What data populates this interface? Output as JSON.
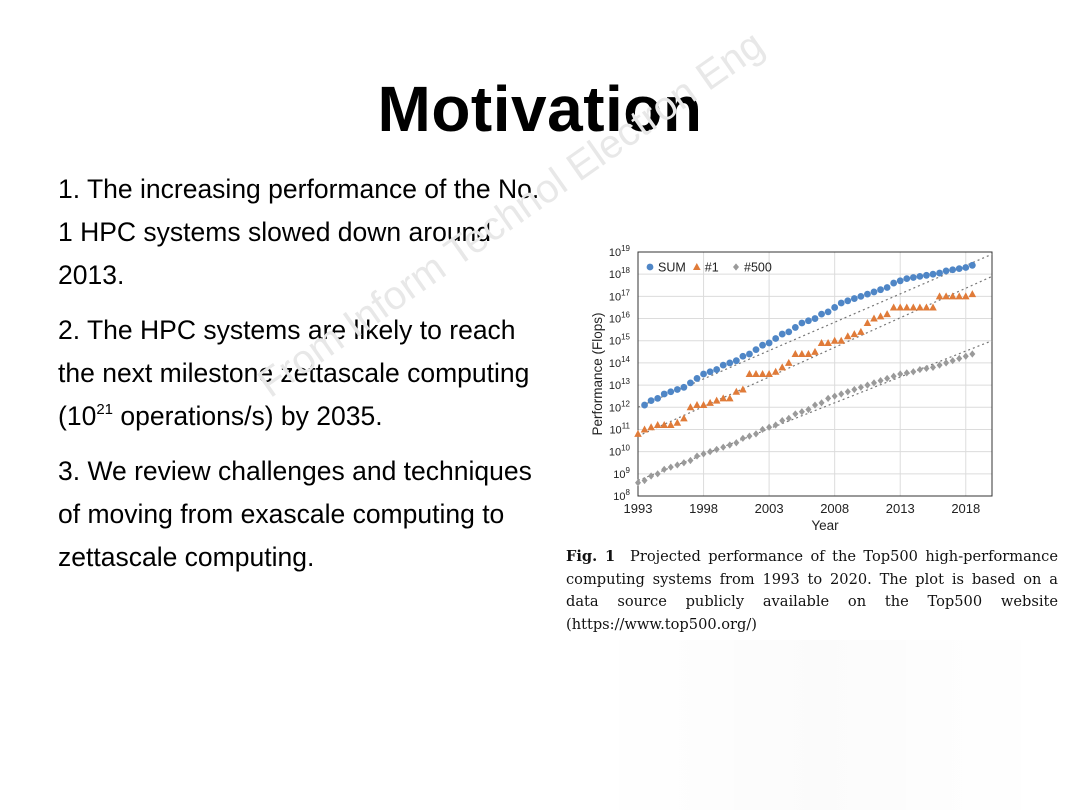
{
  "slide": {
    "title": "Motivation",
    "bullets": [
      {
        "text": "1. The increasing performance of the No. 1 HPC systems slowed down around 2013."
      },
      {
        "pre": "2. The HPC systems are likely to reach the next milestone zettascale computing (10",
        "sup": "21",
        "post": " operations/s) by 2035."
      },
      {
        "text": "3. We review challenges and techniques of moving from exascale computing to zettascale computing."
      }
    ],
    "watermark": "From Inform Technol Electron Eng",
    "caption": {
      "label": "Fig. 1",
      "text": "Projected performance of the Top500 high-performance computing systems from 1993 to 2020. The plot is based on a data source publicly available on the Top500 website (https://www.top500.org/)"
    }
  },
  "chart_data": {
    "type": "scatter",
    "title": "",
    "xlabel": "Year",
    "ylabel": "Performance (Flops)",
    "xlim": [
      1993,
      2020
    ],
    "ylim_exponent": [
      8,
      19
    ],
    "xticks": [
      "1993",
      "1998",
      "2003",
      "2008",
      "2013",
      "2018"
    ],
    "yticks": [
      {
        "base": "10",
        "exp": "8"
      },
      {
        "base": "10",
        "exp": "9"
      },
      {
        "base": "10",
        "exp": "10"
      },
      {
        "base": "10",
        "exp": "11"
      },
      {
        "base": "10",
        "exp": "12"
      },
      {
        "base": "10",
        "exp": "13"
      },
      {
        "base": "10",
        "exp": "14"
      },
      {
        "base": "10",
        "exp": "15"
      },
      {
        "base": "10",
        "exp": "16"
      },
      {
        "base": "10",
        "exp": "17"
      },
      {
        "base": "10",
        "exp": "18"
      },
      {
        "base": "10",
        "exp": "19"
      }
    ],
    "grid": true,
    "legend_position": "top-left",
    "series": [
      {
        "name": "SUM",
        "marker": "circle",
        "color": "#4f86c6",
        "x": [
          1993.5,
          1994,
          1994.5,
          1995,
          1995.5,
          1996,
          1996.5,
          1997,
          1997.5,
          1998,
          1998.5,
          1999,
          1999.5,
          2000,
          2000.5,
          2001,
          2001.5,
          2002,
          2002.5,
          2003,
          2003.5,
          2004,
          2004.5,
          2005,
          2005.5,
          2006,
          2006.5,
          2007,
          2007.5,
          2008,
          2008.5,
          2009,
          2009.5,
          2010,
          2010.5,
          2011,
          2011.5,
          2012,
          2012.5,
          2013,
          2013.5,
          2014,
          2014.5,
          2015,
          2015.5,
          2016,
          2016.5,
          2017,
          2017.5,
          2018,
          2018.5
        ],
        "log10_y": [
          12.1,
          12.3,
          12.4,
          12.6,
          12.7,
          12.8,
          12.9,
          13.1,
          13.3,
          13.5,
          13.6,
          13.7,
          13.9,
          14.0,
          14.1,
          14.3,
          14.4,
          14.6,
          14.8,
          14.9,
          15.1,
          15.3,
          15.4,
          15.6,
          15.8,
          15.9,
          16.0,
          16.2,
          16.3,
          16.5,
          16.7,
          16.8,
          16.9,
          17.0,
          17.1,
          17.2,
          17.3,
          17.4,
          17.6,
          17.7,
          17.8,
          17.85,
          17.9,
          17.95,
          18.0,
          18.05,
          18.15,
          18.2,
          18.25,
          18.3,
          18.4
        ]
      },
      {
        "name": "#1",
        "marker": "triangle",
        "color": "#e07b39",
        "x": [
          1993,
          1993.5,
          1994,
          1994.5,
          1995,
          1995.5,
          1996,
          1996.5,
          1997,
          1997.5,
          1998,
          1998.5,
          1999,
          1999.5,
          2000,
          2000.5,
          2001,
          2001.5,
          2002,
          2002.5,
          2003,
          2003.5,
          2004,
          2004.5,
          2005,
          2005.5,
          2006,
          2006.5,
          2007,
          2007.5,
          2008,
          2008.5,
          2009,
          2009.5,
          2010,
          2010.5,
          2011,
          2011.5,
          2012,
          2012.5,
          2013,
          2013.5,
          2014,
          2014.5,
          2015,
          2015.5,
          2016,
          2016.5,
          2017,
          2017.5,
          2018,
          2018.5
        ],
        "log10_y": [
          10.8,
          11.0,
          11.1,
          11.2,
          11.2,
          11.2,
          11.3,
          11.5,
          12.0,
          12.1,
          12.1,
          12.2,
          12.3,
          12.4,
          12.4,
          12.7,
          12.8,
          13.5,
          13.5,
          13.5,
          13.5,
          13.6,
          13.8,
          14.0,
          14.4,
          14.4,
          14.4,
          14.5,
          14.9,
          14.9,
          15.0,
          15.0,
          15.2,
          15.3,
          15.4,
          15.8,
          16.0,
          16.1,
          16.2,
          16.5,
          16.5,
          16.5,
          16.5,
          16.5,
          16.5,
          16.5,
          17.0,
          17.0,
          17.0,
          17.0,
          17.0,
          17.1
        ]
      },
      {
        "name": "#500",
        "marker": "diamond",
        "color": "#9a9a9a",
        "x": [
          1993,
          1993.5,
          1994,
          1994.5,
          1995,
          1995.5,
          1996,
          1996.5,
          1997,
          1997.5,
          1998,
          1998.5,
          1999,
          1999.5,
          2000,
          2000.5,
          2001,
          2001.5,
          2002,
          2002.5,
          2003,
          2003.5,
          2004,
          2004.5,
          2005,
          2005.5,
          2006,
          2006.5,
          2007,
          2007.5,
          2008,
          2008.5,
          2009,
          2009.5,
          2010,
          2010.5,
          2011,
          2011.5,
          2012,
          2012.5,
          2013,
          2013.5,
          2014,
          2014.5,
          2015,
          2015.5,
          2016,
          2016.5,
          2017,
          2017.5,
          2018,
          2018.5
        ],
        "log10_y": [
          8.6,
          8.7,
          8.9,
          9.0,
          9.2,
          9.3,
          9.4,
          9.5,
          9.6,
          9.8,
          9.9,
          10.0,
          10.1,
          10.2,
          10.3,
          10.4,
          10.6,
          10.7,
          10.8,
          11.0,
          11.1,
          11.2,
          11.4,
          11.5,
          11.7,
          11.8,
          11.9,
          12.1,
          12.2,
          12.4,
          12.5,
          12.6,
          12.7,
          12.8,
          12.9,
          13.0,
          13.1,
          13.2,
          13.3,
          13.4,
          13.5,
          13.55,
          13.6,
          13.7,
          13.75,
          13.8,
          13.9,
          14.0,
          14.1,
          14.2,
          14.3,
          14.4
        ]
      }
    ],
    "trendlines": [
      {
        "series": "SUM",
        "log10_y_at_xlim": [
          12.0,
          18.9
        ]
      },
      {
        "series": "#1",
        "log10_y_at_xlim": [
          10.7,
          17.9
        ]
      },
      {
        "series": "#500",
        "log10_y_at_xlim": [
          8.7,
          15.0
        ]
      }
    ]
  }
}
